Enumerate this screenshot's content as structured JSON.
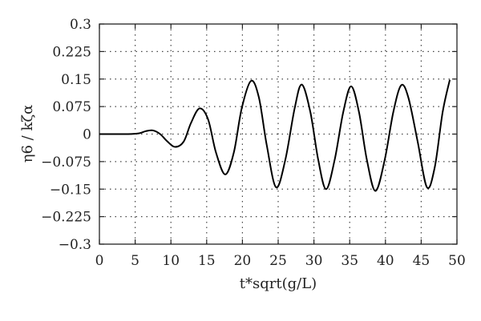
{
  "chart_data": {
    "type": "line",
    "title": "",
    "xlabel": "t*sqrt(g/L)",
    "ylabel": "η6 / kζα",
    "xlim": [
      0,
      50
    ],
    "ylim": [
      -0.3,
      0.3
    ],
    "x_ticks": [
      "0",
      "5",
      "10",
      "15",
      "20",
      "25",
      "30",
      "35",
      "40",
      "45",
      "50"
    ],
    "y_ticks": [
      "0.3",
      "0.225",
      "0.15",
      "0.075",
      "0",
      "−0.075",
      "−0.15",
      "−0.225",
      "−0.3"
    ],
    "grid": true,
    "series": [
      {
        "x": [
          0,
          2,
          4,
          5.5,
          6.5,
          7.5,
          8.5,
          9.5,
          10.6,
          11.8,
          12.8,
          14,
          15.2,
          16.3,
          17.6,
          18.8,
          19.9,
          21.2,
          22.3,
          23.4,
          24.7,
          26,
          27.3,
          28.3,
          29.5,
          30.6,
          31.7,
          32.9,
          34.1,
          35.2,
          36.3,
          37.4,
          38.6,
          39.9,
          41.1,
          42.2,
          43.2,
          44.5,
          45.8,
          46.9,
          48,
          49
        ],
        "y": [
          0,
          0,
          0,
          0.002,
          0.008,
          0.01,
          0,
          -0.02,
          -0.035,
          -0.02,
          0.03,
          0.07,
          0.04,
          -0.05,
          -0.11,
          -0.05,
          0.07,
          0.145,
          0.1,
          -0.03,
          -0.145,
          -0.07,
          0.07,
          0.135,
          0.06,
          -0.07,
          -0.15,
          -0.07,
          0.06,
          0.13,
          0.06,
          -0.07,
          -0.155,
          -0.07,
          0.06,
          0.133,
          0.1,
          -0.02,
          -0.145,
          -0.09,
          0.06,
          0.148
        ]
      }
    ]
  }
}
